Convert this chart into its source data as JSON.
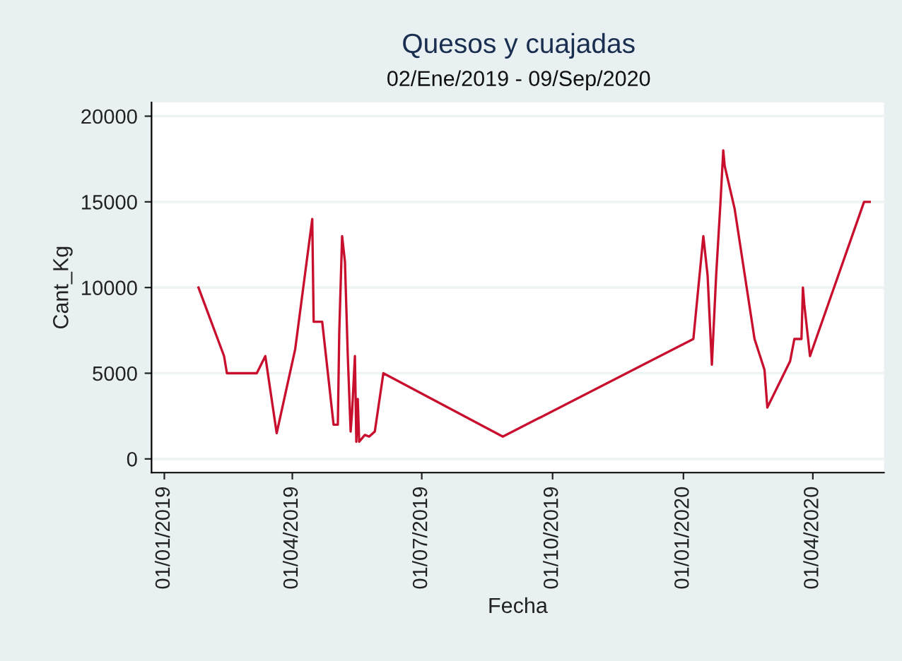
{
  "chart_data": {
    "type": "line",
    "title": "Quesos y cuajadas",
    "subtitle": "02/Ene/2019 - 09/Sep/2020",
    "xlabel": "Fecha",
    "ylabel": "Cant_Kg",
    "x": [
      "2019-01-25",
      "2019-02-12",
      "2019-02-14",
      "2019-03-07",
      "2019-03-13",
      "2019-03-21",
      "2019-04-03",
      "2019-04-15",
      "2019-04-16",
      "2019-04-22",
      "2019-04-30",
      "2019-05-03",
      "2019-05-04",
      "2019-05-06",
      "2019-05-08",
      "2019-05-10",
      "2019-05-12",
      "2019-05-13",
      "2019-05-15",
      "2019-05-16",
      "2019-05-17",
      "2019-05-18",
      "2019-05-22",
      "2019-05-25",
      "2019-05-29",
      "2019-06-04",
      "2019-08-27",
      "2020-01-08",
      "2020-01-15",
      "2020-01-18",
      "2020-01-21",
      "2020-01-24",
      "2020-01-27",
      "2020-01-29",
      "2020-01-30",
      "2020-02-06",
      "2020-02-20",
      "2020-02-27",
      "2020-02-29",
      "2020-03-16",
      "2020-03-19",
      "2020-03-24",
      "2020-03-25",
      "2020-03-26",
      "2020-03-30",
      "2020-05-07",
      "2020-05-11"
    ],
    "series": [
      {
        "color": "#c8102e",
        "values": [
          10000,
          6000,
          5000,
          5000,
          6000,
          1500,
          6400,
          14000,
          8000,
          8000,
          2000,
          2000,
          7400,
          13000,
          11500,
          6000,
          1600,
          2700,
          6000,
          1000,
          3500,
          1000,
          1400,
          1300,
          1600,
          5000,
          1300,
          7000,
          13000,
          10700,
          5500,
          10700,
          14900,
          18000,
          17100,
          14600,
          7000,
          5200,
          3000,
          5700,
          7000,
          7000,
          10000,
          9000,
          6000,
          15000,
          15000
        ]
      }
    ],
    "xlim": [
      "2018-12-23",
      "2020-05-21"
    ],
    "xticks": [
      {
        "value": "2019-01-01",
        "label": "01/01/2019"
      },
      {
        "value": "2019-04-01",
        "label": "01/04/2019"
      },
      {
        "value": "2019-07-01",
        "label": "01/07/2019"
      },
      {
        "value": "2019-10-01",
        "label": "01/10/2019"
      },
      {
        "value": "2020-01-01",
        "label": "01/01/2020"
      },
      {
        "value": "2020-04-01",
        "label": "01/04/2020"
      }
    ],
    "ylim": [
      -800,
      20800
    ],
    "yticks": [
      0,
      5000,
      10000,
      15000,
      20000
    ],
    "grid": "y",
    "line_style": "solid"
  }
}
